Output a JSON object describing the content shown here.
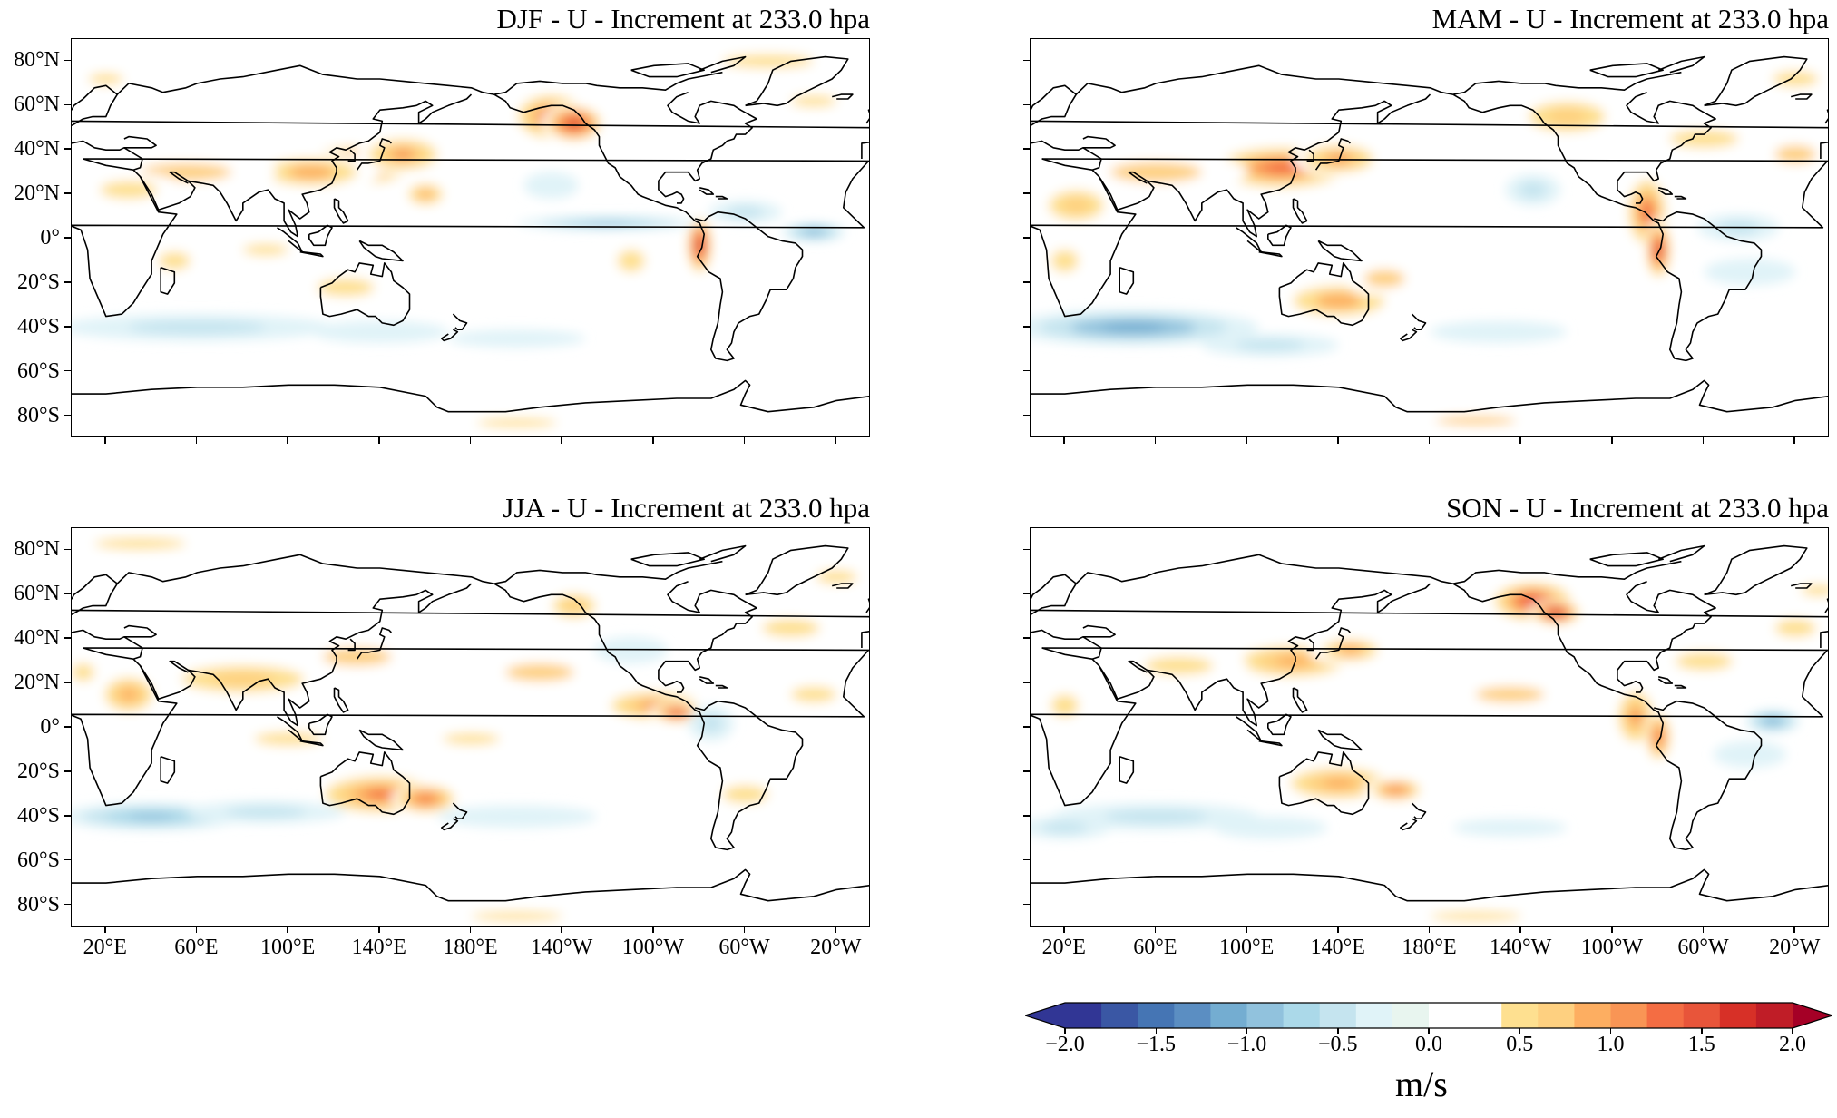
{
  "panels": [
    {
      "id": "djf",
      "title": "DJF - U - Increment at 233.0 hpa",
      "show_lat_labels": true,
      "show_lon_labels": false
    },
    {
      "id": "mam",
      "title": "MAM - U - Increment at 233.0 hpa",
      "show_lat_labels": false,
      "show_lon_labels": false
    },
    {
      "id": "jja",
      "title": "JJA - U - Increment at 233.0 hpa",
      "show_lat_labels": true,
      "show_lon_labels": true
    },
    {
      "id": "son",
      "title": "SON - U - Increment at 233.0 hpa",
      "show_lat_labels": false,
      "show_lon_labels": true
    }
  ],
  "lat_labels": [
    "80°N",
    "60°N",
    "40°N",
    "20°N",
    "0°",
    "20°S",
    "40°S",
    "60°S",
    "80°S"
  ],
  "lon_labels": [
    "20°E",
    "60°E",
    "100°E",
    "140°E",
    "180°E",
    "140°W",
    "100°W",
    "60°W",
    "20°W"
  ],
  "colorbar": {
    "ticks": [
      "−2.0",
      "−1.5",
      "−1.0",
      "−0.5",
      "0.0",
      "0.5",
      "1.0",
      "1.5",
      "2.0"
    ],
    "unit": "m/s",
    "range": [
      -2.0,
      2.0
    ],
    "levels": 24,
    "colors": [
      "#313695",
      "#3a57a4",
      "#4575b4",
      "#5b8ec2",
      "#74add1",
      "#91c2dd",
      "#abd9e9",
      "#c5e4ef",
      "#e0f3f8",
      "#e8f5ef",
      "#ffffff",
      "#ffffff",
      "#fee090",
      "#fed080",
      "#fdae61",
      "#f99555",
      "#f46d43",
      "#e8553a",
      "#d73027",
      "#c01d27",
      "#a50026",
      "#8b0020",
      "#a50026",
      "#a50026"
    ]
  },
  "colormap": {
    "negative": "#4575b4",
    "positive": "#d73027",
    "neutral": "#ffffff"
  }
}
